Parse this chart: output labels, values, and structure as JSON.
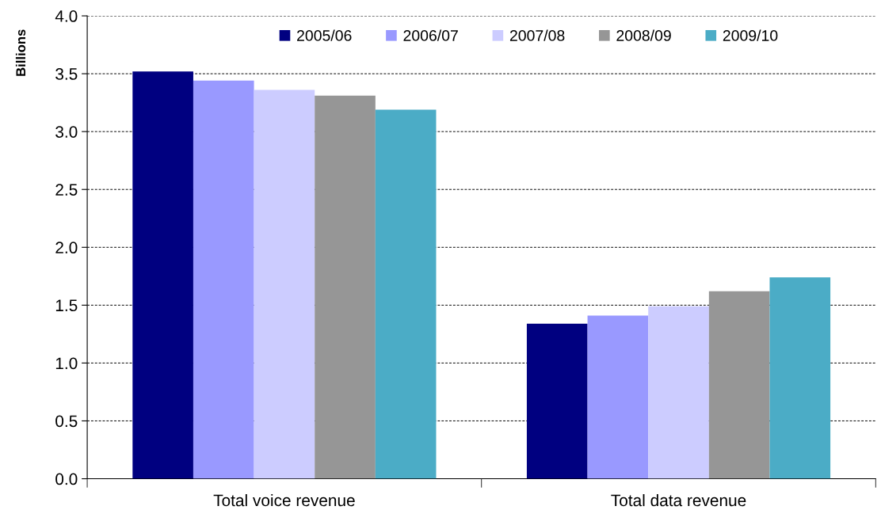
{
  "chart_data": {
    "type": "bar",
    "ylabel": "Billions",
    "categories": [
      "Total voice revenue",
      "Total data revenue"
    ],
    "series": [
      {
        "name": "2005/06",
        "color": "#000080",
        "values": [
          3.52,
          1.34
        ]
      },
      {
        "name": "2006/07",
        "color": "#9999ff",
        "values": [
          3.44,
          1.41
        ]
      },
      {
        "name": "2007/08",
        "color": "#ccccff",
        "values": [
          3.36,
          1.49
        ]
      },
      {
        "name": "2008/09",
        "color": "#969696",
        "values": [
          3.31,
          1.62
        ]
      },
      {
        "name": "2009/10",
        "color": "#4bacc6",
        "values": [
          3.19,
          1.74
        ]
      }
    ],
    "ylim": [
      0,
      4
    ],
    "yticks": [
      {
        "value": 0,
        "label": "0.0"
      },
      {
        "value": 0.5,
        "label": "0.5"
      },
      {
        "value": 1,
        "label": "1.0"
      },
      {
        "value": 1.5,
        "label": "1.5"
      },
      {
        "value": 2,
        "label": "2.0"
      },
      {
        "value": 2.5,
        "label": "2.5"
      },
      {
        "value": 3,
        "label": "3.0"
      },
      {
        "value": 3.5,
        "label": "3.5"
      },
      {
        "value": 4,
        "label": "4.0"
      }
    ],
    "grid": "y",
    "legend": "top"
  }
}
